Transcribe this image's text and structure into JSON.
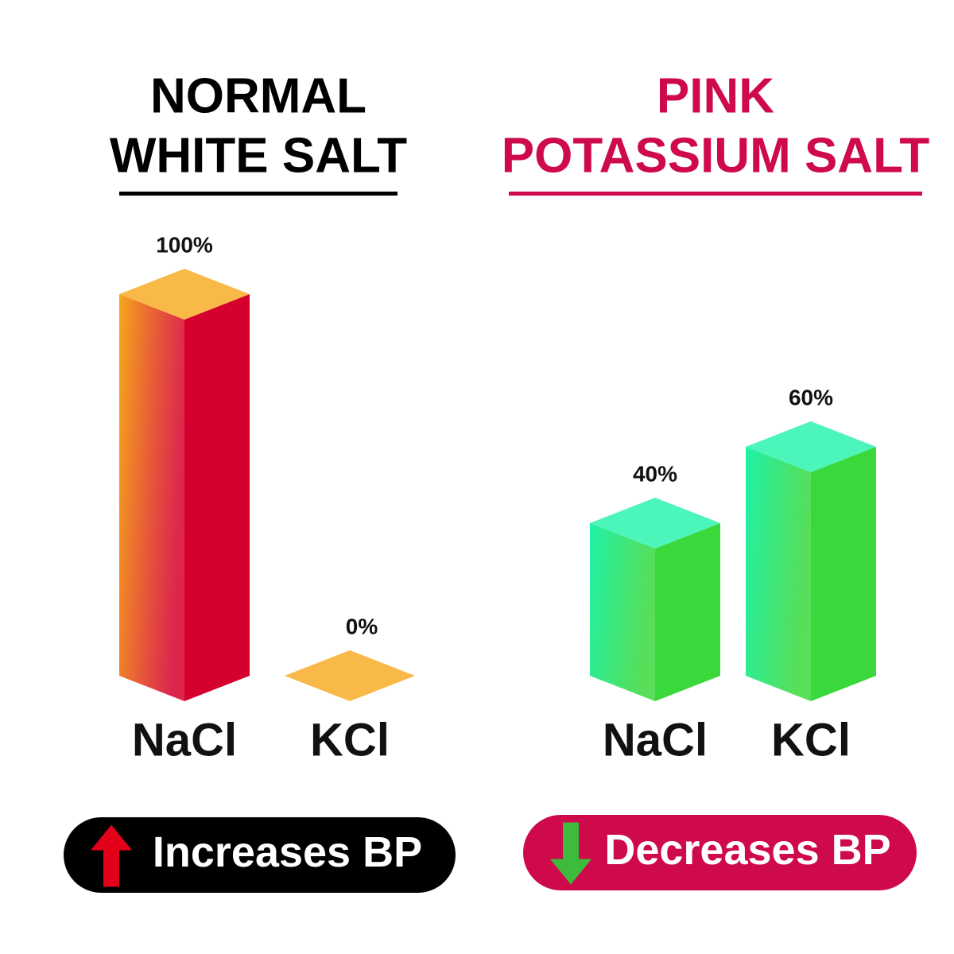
{
  "chart_data": [
    {
      "type": "bar",
      "title": [
        "NORMAL",
        "WHITE SALT"
      ],
      "title_color": "#000000",
      "categories": [
        "NaCl",
        "KCl"
      ],
      "values": [
        100,
        0
      ],
      "value_labels": [
        "100%",
        "0%"
      ],
      "colors": [
        "#f7a81b",
        "#d6002f"
      ],
      "ylim": [
        0,
        100
      ],
      "annotation": "Increases BP",
      "annotation_color": "#000000",
      "arrow": "up",
      "arrow_color": "#e3001b"
    },
    {
      "type": "bar",
      "title": [
        "PINK",
        "POTASSIUM SALT"
      ],
      "title_color": "#cf0a4a",
      "categories": [
        "NaCl",
        "KCl"
      ],
      "values": [
        40,
        60
      ],
      "value_labels": [
        "40%",
        "60%"
      ],
      "colors": [
        "#1ff2a8",
        "#3bd83b"
      ],
      "ylim": [
        0,
        100
      ],
      "annotation": "Decreases BP",
      "annotation_color": "#cf0a4a",
      "arrow": "down",
      "arrow_color": "#3dbb3d"
    }
  ]
}
